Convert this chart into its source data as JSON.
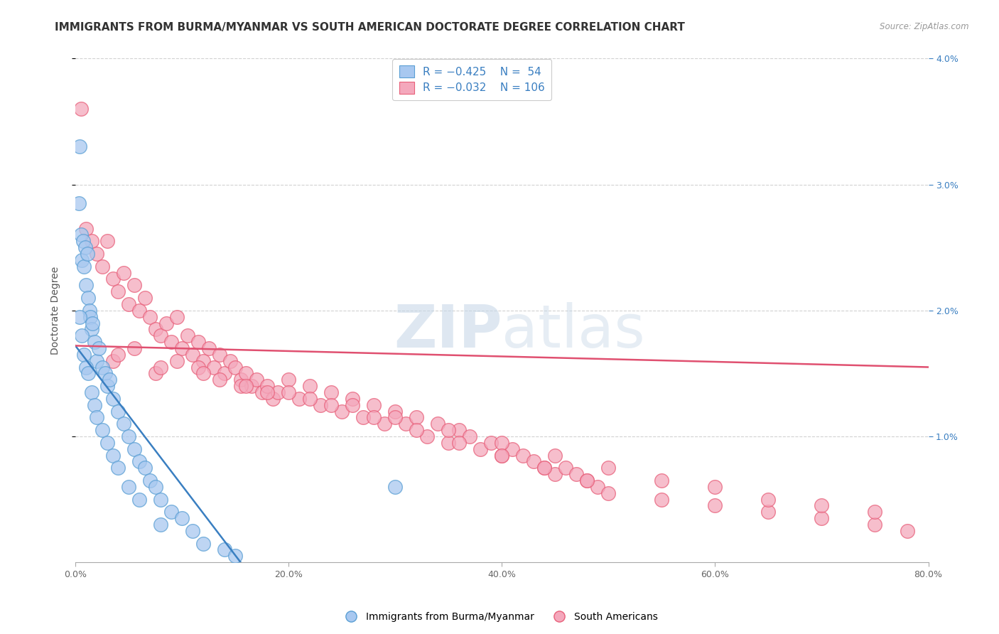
{
  "title": "IMMIGRANTS FROM BURMA/MYANMAR VS SOUTH AMERICAN DOCTORATE DEGREE CORRELATION CHART",
  "source": "Source: ZipAtlas.com",
  "ylabel": "Doctorate Degree",
  "xlim": [
    0.0,
    80.0
  ],
  "ylim": [
    0.0,
    4.0
  ],
  "xtick_labels": [
    "0.0%",
    "20.0%",
    "40.0%",
    "60.0%",
    "80.0%"
  ],
  "xtick_vals": [
    0,
    20,
    40,
    60,
    80
  ],
  "ytick_labels": [
    "1.0%",
    "2.0%",
    "3.0%",
    "4.0%"
  ],
  "ytick_vals": [
    1.0,
    2.0,
    3.0,
    4.0
  ],
  "blue_fill": "#a8c8f0",
  "pink_fill": "#f4a8bc",
  "blue_edge": "#5a9fd4",
  "pink_edge": "#e8607a",
  "blue_line_color": "#3a7fc1",
  "pink_line_color": "#e05070",
  "legend_label1": "Immigrants from Burma/Myanmar",
  "legend_label2": "South Americans",
  "watermark": "ZIPatlas",
  "blue_line_x0": 0.0,
  "blue_line_y0": 1.72,
  "blue_line_x1": 15.5,
  "blue_line_y1": 0.0,
  "pink_line_x0": 0.0,
  "pink_line_y0": 1.72,
  "pink_line_x1": 80.0,
  "pink_line_y1": 1.55,
  "blue_x": [
    0.3,
    0.5,
    0.4,
    0.6,
    0.7,
    0.8,
    0.9,
    1.0,
    1.1,
    1.2,
    1.3,
    1.4,
    1.5,
    1.6,
    1.8,
    2.0,
    2.2,
    2.5,
    2.8,
    3.0,
    3.2,
    3.5,
    4.0,
    4.5,
    5.0,
    5.5,
    6.0,
    6.5,
    7.0,
    7.5,
    8.0,
    9.0,
    10.0,
    11.0,
    12.0,
    14.0,
    15.0,
    0.4,
    0.6,
    0.8,
    1.0,
    1.2,
    1.5,
    1.8,
    2.0,
    2.5,
    3.0,
    3.5,
    4.0,
    5.0,
    6.0,
    8.0,
    30.0
  ],
  "blue_y": [
    2.85,
    2.6,
    3.3,
    2.4,
    2.55,
    2.35,
    2.5,
    2.2,
    2.45,
    2.1,
    2.0,
    1.95,
    1.85,
    1.9,
    1.75,
    1.6,
    1.7,
    1.55,
    1.5,
    1.4,
    1.45,
    1.3,
    1.2,
    1.1,
    1.0,
    0.9,
    0.8,
    0.75,
    0.65,
    0.6,
    0.5,
    0.4,
    0.35,
    0.25,
    0.15,
    0.1,
    0.05,
    1.95,
    1.8,
    1.65,
    1.55,
    1.5,
    1.35,
    1.25,
    1.15,
    1.05,
    0.95,
    0.85,
    0.75,
    0.6,
    0.5,
    0.3,
    0.6
  ],
  "pink_x": [
    0.5,
    1.0,
    1.5,
    2.0,
    2.5,
    3.0,
    3.5,
    4.0,
    4.5,
    5.0,
    5.5,
    6.0,
    6.5,
    7.0,
    7.5,
    8.0,
    8.5,
    9.0,
    9.5,
    10.0,
    10.5,
    11.0,
    11.5,
    12.0,
    12.5,
    13.0,
    13.5,
    14.0,
    14.5,
    15.0,
    15.5,
    16.0,
    16.5,
    17.0,
    17.5,
    18.0,
    18.5,
    19.0,
    20.0,
    21.0,
    22.0,
    23.0,
    24.0,
    25.0,
    26.0,
    27.0,
    28.0,
    29.0,
    30.0,
    31.0,
    32.0,
    33.0,
    34.0,
    35.0,
    36.0,
    37.0,
    38.0,
    39.0,
    40.0,
    41.0,
    42.0,
    43.0,
    44.0,
    45.0,
    46.0,
    47.0,
    48.0,
    49.0,
    50.0,
    55.0,
    60.0,
    65.0,
    70.0,
    75.0,
    78.0,
    3.5,
    5.5,
    7.5,
    9.5,
    11.5,
    13.5,
    15.5,
    18.0,
    22.0,
    26.0,
    30.0,
    35.0,
    40.0,
    45.0,
    50.0,
    55.0,
    60.0,
    65.0,
    70.0,
    75.0,
    4.0,
    8.0,
    12.0,
    16.0,
    20.0,
    24.0,
    28.0,
    32.0,
    36.0,
    40.0,
    44.0,
    48.0
  ],
  "pink_y": [
    3.6,
    2.65,
    2.55,
    2.45,
    2.35,
    2.55,
    2.25,
    2.15,
    2.3,
    2.05,
    2.2,
    2.0,
    2.1,
    1.95,
    1.85,
    1.8,
    1.9,
    1.75,
    1.95,
    1.7,
    1.8,
    1.65,
    1.75,
    1.6,
    1.7,
    1.55,
    1.65,
    1.5,
    1.6,
    1.55,
    1.45,
    1.5,
    1.4,
    1.45,
    1.35,
    1.4,
    1.3,
    1.35,
    1.45,
    1.3,
    1.4,
    1.25,
    1.35,
    1.2,
    1.3,
    1.15,
    1.25,
    1.1,
    1.2,
    1.1,
    1.15,
    1.0,
    1.1,
    0.95,
    1.05,
    1.0,
    0.9,
    0.95,
    0.85,
    0.9,
    0.85,
    0.8,
    0.75,
    0.7,
    0.75,
    0.7,
    0.65,
    0.6,
    0.55,
    0.5,
    0.45,
    0.4,
    0.35,
    0.3,
    0.25,
    1.6,
    1.7,
    1.5,
    1.6,
    1.55,
    1.45,
    1.4,
    1.35,
    1.3,
    1.25,
    1.15,
    1.05,
    0.95,
    0.85,
    0.75,
    0.65,
    0.6,
    0.5,
    0.45,
    0.4,
    1.65,
    1.55,
    1.5,
    1.4,
    1.35,
    1.25,
    1.15,
    1.05,
    0.95,
    0.85,
    0.75,
    0.65
  ],
  "title_fontsize": 11,
  "axis_label_fontsize": 10,
  "tick_fontsize": 9,
  "legend_fontsize": 11,
  "background_color": "#ffffff",
  "grid_color": "#cccccc"
}
